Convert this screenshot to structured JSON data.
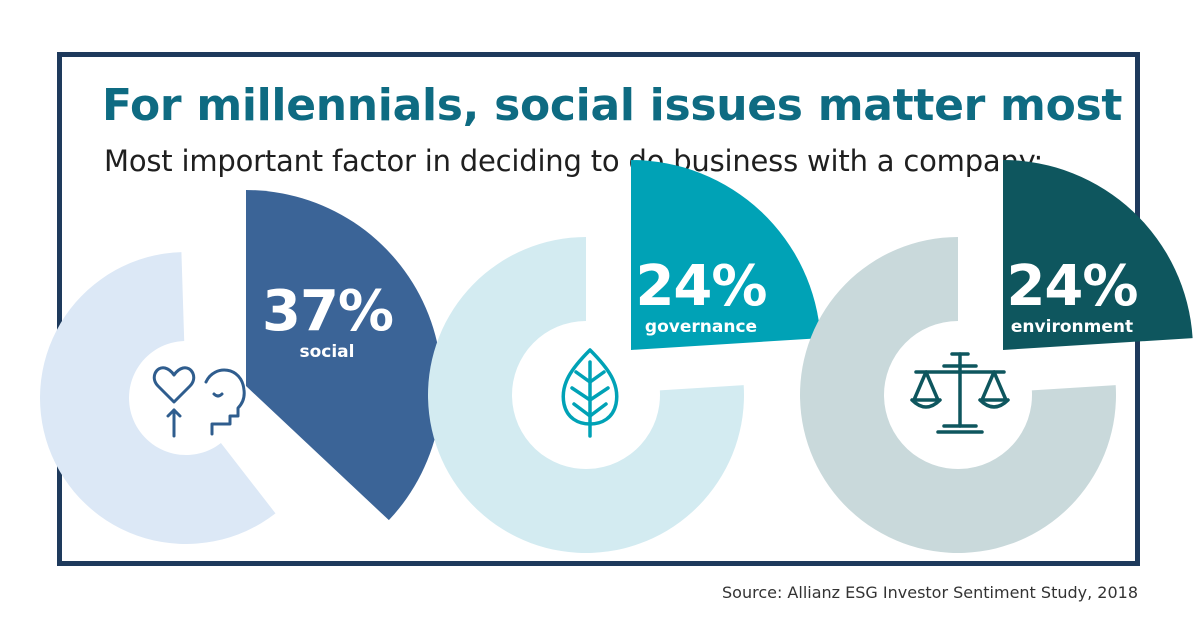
{
  "title": "For millennials, social issues matter most",
  "subtitle": "Most important factor in deciding to do business with a company:",
  "source": "Source: Allianz ESG Investor Sentiment Study, 2018",
  "colors": {
    "frame": "#1e3a5c",
    "title": "#0e6b82",
    "social_light": "#dce8f6",
    "social_dark": "#3b6497",
    "governance_light": "#d3ebf1",
    "governance_dark": "#00a2b6",
    "environment_light": "#c9d9db",
    "environment_dark": "#0e565e",
    "icon_social": "#2f5d8e",
    "icon_governance": "#00a2b6",
    "icon_environment": "#0e565e"
  },
  "chart_data": {
    "type": "pie",
    "title": "For millennials, social issues matter most",
    "subtitle": "Most important factor in deciding to do business with a company:",
    "series": [
      {
        "name": "social",
        "value": 37,
        "label": "37%",
        "icon": "heart-head-icon"
      },
      {
        "name": "governance",
        "value": 24,
        "label": "24%",
        "icon": "leaf-icon"
      },
      {
        "name": "environment",
        "value": 24,
        "label": "24%",
        "icon": "scales-icon"
      }
    ]
  }
}
